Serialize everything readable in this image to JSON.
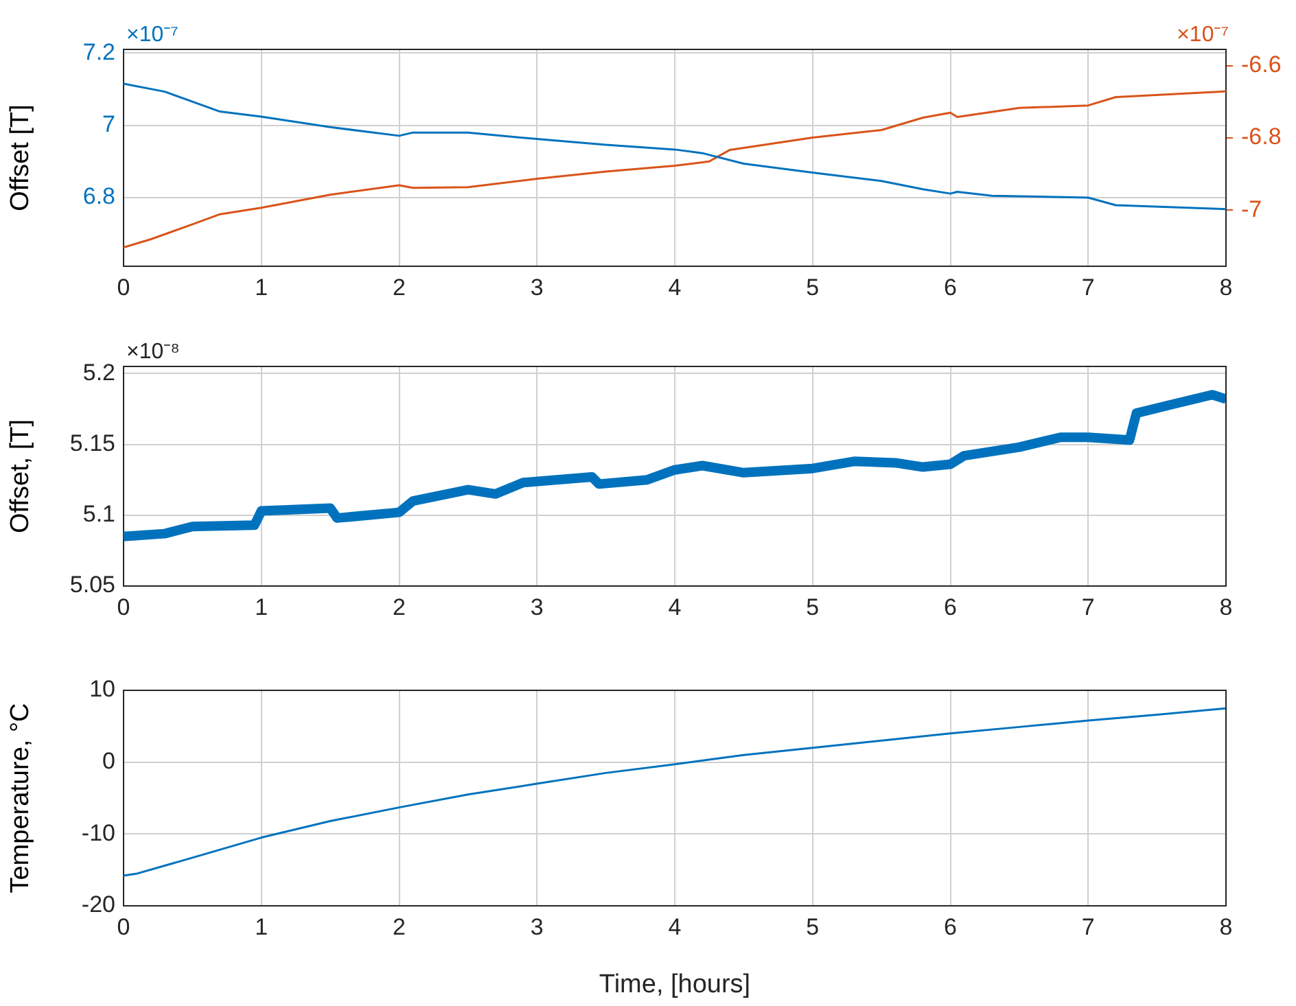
{
  "chart_data": [
    {
      "type": "line",
      "ylabel": "Offset [T]",
      "annotations": [
        "×10⁻⁷",
        "×10⁻⁷"
      ],
      "xlim": [
        0,
        8
      ],
      "xticks": [
        0,
        1,
        2,
        3,
        4,
        5,
        6,
        7,
        8
      ],
      "ylim": [
        6.61,
        7.21
      ],
      "yticks": [
        6.8,
        7,
        7.2
      ],
      "y2lim": [
        -7.155,
        -6.555
      ],
      "y2ticks": [
        -7,
        -6.8,
        -6.6
      ],
      "grid": true,
      "marker": "none",
      "series": [
        {
          "color": "#0072bd",
          "x": [
            0,
            0.3,
            0.7,
            1,
            1.5,
            2,
            2.1,
            2.5,
            3,
            3.5,
            4,
            4.2,
            4.5,
            5,
            5.5,
            5.8,
            6,
            6.05,
            6.3,
            7,
            7.2,
            8
          ],
          "values": [
            7.115,
            7.093,
            7.038,
            7.024,
            6.995,
            6.971,
            6.98,
            6.98,
            6.962,
            6.946,
            6.933,
            6.923,
            6.894,
            6.869,
            6.846,
            6.823,
            6.811,
            6.816,
            6.805,
            6.8,
            6.779,
            6.768
          ]
        },
        {
          "color": "#d95319",
          "axis": "y2",
          "x": [
            0,
            0.2,
            0.5,
            0.7,
            1,
            1.5,
            2,
            2.1,
            2.5,
            3,
            3.5,
            4,
            4.25,
            4.4,
            5,
            5.5,
            5.8,
            6,
            6.05,
            6.5,
            7,
            7.2,
            8
          ],
          "values": [
            -7.103,
            -7.08,
            -7.039,
            -7.011,
            -6.993,
            -6.957,
            -6.931,
            -6.938,
            -6.936,
            -6.913,
            -6.893,
            -6.877,
            -6.865,
            -6.833,
            -6.799,
            -6.778,
            -6.744,
            -6.73,
            -6.742,
            -6.717,
            -6.71,
            -6.687,
            -6.671
          ]
        }
      ]
    },
    {
      "type": "line",
      "ylabel": "Offset, [T]",
      "annotations": [
        "×10⁻⁸"
      ],
      "xlim": [
        0,
        8
      ],
      "xticks": [
        0,
        1,
        2,
        3,
        4,
        5,
        6,
        7,
        8
      ],
      "ylim": [
        5.05,
        5.205
      ],
      "yticks": [
        5.05,
        5.1,
        5.15,
        5.2
      ],
      "grid": true,
      "marker": "none",
      "series": [
        {
          "color": "#0072bd",
          "x": [
            0,
            0.3,
            0.5,
            0.95,
            1.0,
            1.5,
            1.55,
            2.0,
            2.1,
            2.5,
            2.7,
            2.9,
            3.4,
            3.45,
            3.8,
            4.0,
            4.2,
            4.5,
            5.0,
            5.3,
            5.6,
            5.8,
            6.0,
            6.1,
            6.5,
            6.8,
            7.0,
            7.3,
            7.35,
            7.6,
            7.9,
            8
          ],
          "values": [
            5.085,
            5.087,
            5.092,
            5.093,
            5.103,
            5.105,
            5.098,
            5.102,
            5.11,
            5.118,
            5.115,
            5.123,
            5.127,
            5.122,
            5.125,
            5.132,
            5.135,
            5.13,
            5.133,
            5.138,
            5.137,
            5.134,
            5.136,
            5.142,
            5.148,
            5.155,
            5.155,
            5.153,
            5.172,
            5.178,
            5.185,
            5.182
          ]
        }
      ]
    },
    {
      "type": "line",
      "xlabel": "Time, [hours]",
      "ylabel": "Temperature, °C",
      "xlim": [
        0,
        8
      ],
      "xticks": [
        0,
        1,
        2,
        3,
        4,
        5,
        6,
        7,
        8
      ],
      "ylim": [
        -20,
        10
      ],
      "yticks": [
        -20,
        -10,
        0,
        10
      ],
      "grid": true,
      "marker": "none",
      "series": [
        {
          "color": "#0072bd",
          "x": [
            0,
            0.1,
            0.5,
            1,
            1.5,
            2,
            2.5,
            3,
            3.5,
            4,
            4.5,
            5,
            5.5,
            6,
            6.5,
            7,
            7.5,
            8
          ],
          "values": [
            -15.8,
            -15.5,
            -13.3,
            -10.5,
            -8.2,
            -6.3,
            -4.5,
            -3.0,
            -1.5,
            -0.3,
            1.0,
            2.0,
            3.0,
            4.0,
            4.9,
            5.8,
            6.6,
            7.5
          ]
        }
      ]
    }
  ]
}
